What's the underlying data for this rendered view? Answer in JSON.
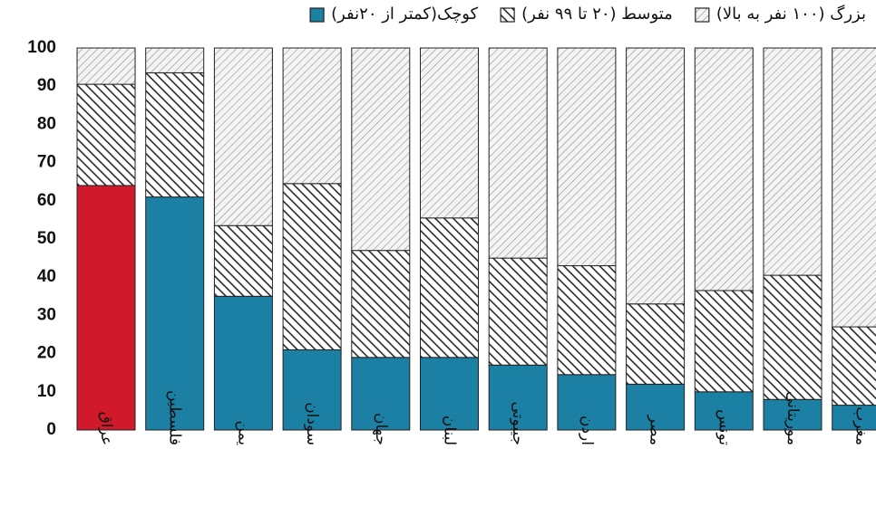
{
  "chart_data": {
    "type": "stacked_bar",
    "categories": [
      "عراق",
      "فلسطين",
      "یمن",
      "سودان",
      "جهان",
      "لبنان",
      "جیبوتی",
      "اردن",
      "مصر",
      "تونس",
      "موریتانی",
      "مغرب"
    ],
    "series": [
      {
        "name": "کوچک(کمتر از ۲۰نفر)",
        "color": "#1b80a3",
        "pattern": "solid",
        "colors": [
          "#d0192b",
          "#1b80a3",
          "#1b80a3",
          "#1b80a3",
          "#1b80a3",
          "#1b80a3",
          "#1b80a3",
          "#1b80a3",
          "#1b80a3",
          "#1b80a3",
          "#1b80a3",
          "#1b80a3"
        ],
        "values": [
          64,
          61,
          35,
          21,
          19,
          19,
          17,
          14.5,
          12,
          10,
          8,
          6.5
        ]
      },
      {
        "name": "متوسط (۲۰ تا ۹۹ نفر)",
        "color": "#2a2a2a",
        "pattern": "dense-hatch",
        "values": [
          26.5,
          32.5,
          18.5,
          43.5,
          28,
          36.5,
          28,
          28.5,
          21,
          26.5,
          32.5,
          20.5
        ]
      },
      {
        "name": "بزرگ (۱۰۰ نفر به بالا)",
        "color": "#8f8f8f",
        "pattern": "light-hatch",
        "values": [
          9.5,
          6.5,
          46.5,
          35.5,
          53,
          44.5,
          55,
          57,
          67,
          63.5,
          59.5,
          73
        ]
      }
    ],
    "ylim": [
      0,
      100
    ],
    "yticks": [
      0,
      10,
      20,
      30,
      40,
      50,
      60,
      70,
      80,
      90,
      100
    ],
    "grid": false
  }
}
